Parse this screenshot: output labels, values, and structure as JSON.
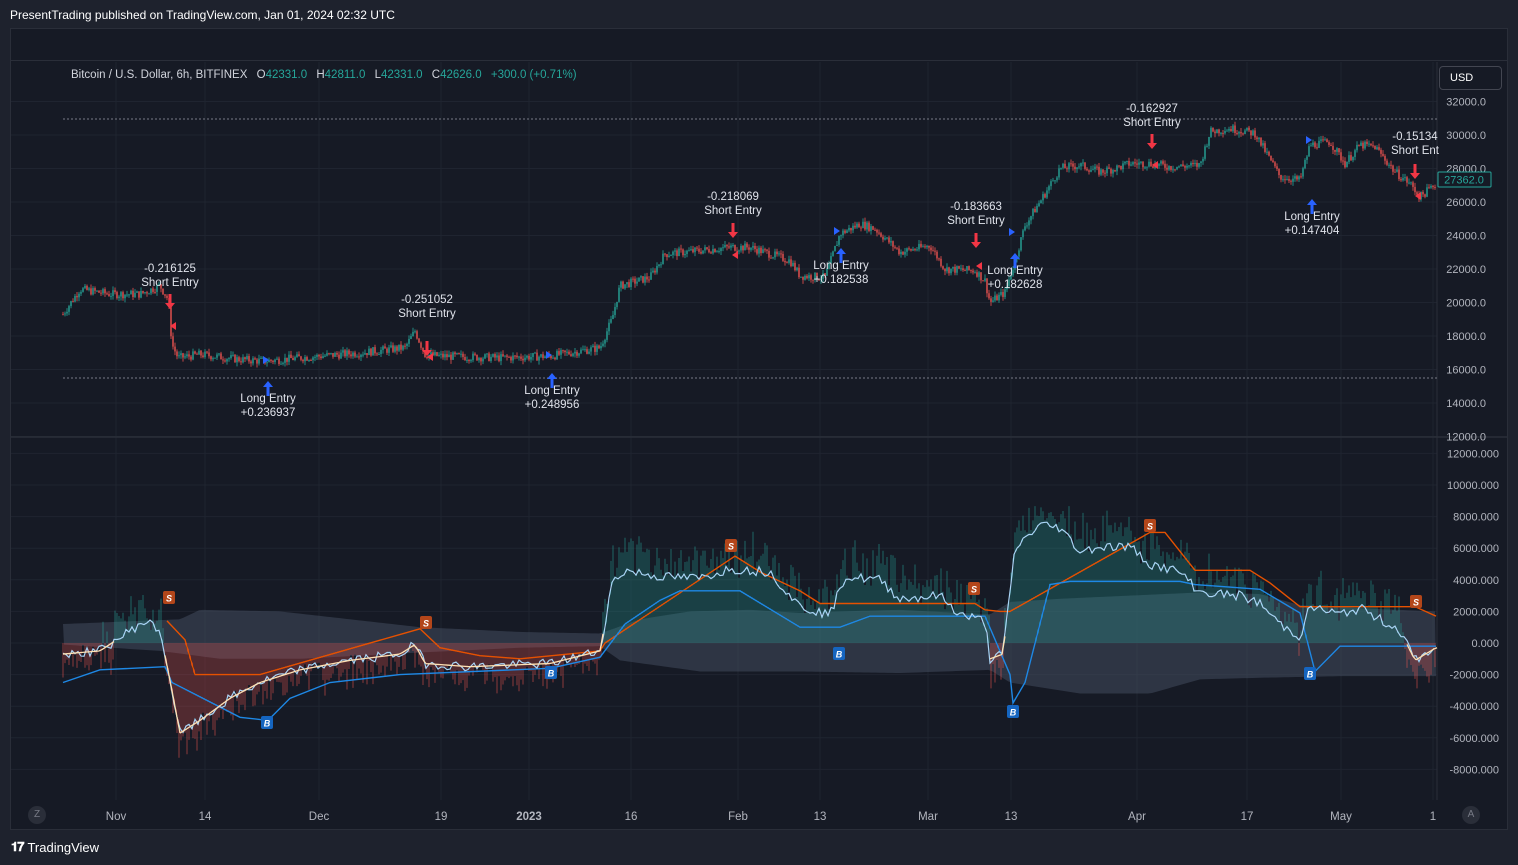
{
  "publisher": "PresentTrading published on TradingView.com, Jan 01, 2024 02:32 UTC",
  "legend": {
    "symbol": "Bitcoin / U.S. Dollar, 6h, BITFINEX",
    "open_key": "O",
    "open": "42331.0",
    "high_key": "H",
    "high": "42811.0",
    "low_key": "L",
    "low": "42331.0",
    "close_key": "C",
    "close": "42626.0",
    "change": "+300.0 (+0.71%)"
  },
  "currency_button": "USD",
  "price_axis": [
    "32000.0",
    "30000.0",
    "28000.0",
    "26000.0",
    "24000.0",
    "22000.0",
    "20000.0",
    "18000.0",
    "16000.0",
    "14000.0",
    "12000.0"
  ],
  "last_price_tag": "27362.0",
  "indicator_axis": [
    "12000.000",
    "10000.000",
    "8000.000",
    "6000.000",
    "4000.000",
    "2000.000",
    "0.000",
    "-2000.000",
    "-4000.000",
    "-6000.000",
    "-8000.000"
  ],
  "time_axis": [
    "Nov",
    "14",
    "Dec",
    "19",
    "2023",
    "16",
    "Feb",
    "13",
    "Mar",
    "13",
    "Apr",
    "17",
    "May",
    "1"
  ],
  "signals": [
    {
      "type": "short",
      "value": "-0.216125",
      "label": "Short Entry"
    },
    {
      "type": "long",
      "value": "+0.236937",
      "label": "Long Entry"
    },
    {
      "type": "short",
      "value": "-0.251052",
      "label": "Short Entry"
    },
    {
      "type": "long",
      "value": "+0.248956",
      "label": "Long Entry"
    },
    {
      "type": "short",
      "value": "-0.218069",
      "label": "Short Entry"
    },
    {
      "type": "long",
      "value": "+0.182538",
      "label": "Long Entry"
    },
    {
      "type": "short",
      "value": "-0.183663",
      "label": "Short Entry"
    },
    {
      "type": "long",
      "value": "+0.182628",
      "label": "Long Entry"
    },
    {
      "type": "short",
      "value": "-0.162927",
      "label": "Short Entry"
    },
    {
      "type": "long",
      "value": "+0.147404",
      "label": "Long Entry"
    },
    {
      "type": "short",
      "value": "-0.15134",
      "label": "Short Ent"
    }
  ],
  "marker_letters": {
    "sell": "S",
    "buy": "B"
  },
  "footer_brand": "TradingView",
  "corner_left": "Z",
  "corner_right": "A",
  "colors": {
    "background": "#161a25",
    "up": "#26a69a",
    "down": "#ef5350",
    "long_arrow": "#2962ff",
    "short_arrow": "#f23645",
    "sell_line": "#e65100",
    "buy_line": "#1e88e5"
  },
  "icons": {
    "logo": "tradingview-logo-icon",
    "long": "arrow-up-icon",
    "short": "arrow-down-icon"
  }
}
